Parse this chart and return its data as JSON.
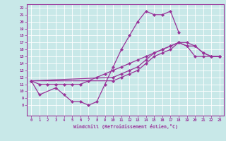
{
  "xlabel": "Windchill (Refroidissement éolien,°C)",
  "color": "#993399",
  "bg_color": "#c8e8e8",
  "grid_color": "#aaaaaa",
  "ylim": [
    6.5,
    22.5
  ],
  "xlim": [
    -0.5,
    23.5
  ],
  "yticks": [
    8,
    9,
    10,
    11,
    12,
    13,
    14,
    15,
    16,
    17,
    18,
    19,
    20,
    21,
    22
  ],
  "xticks": [
    0,
    1,
    2,
    3,
    4,
    5,
    6,
    7,
    8,
    9,
    10,
    11,
    12,
    13,
    14,
    15,
    16,
    17,
    18,
    19,
    20,
    21,
    22,
    23
  ],
  "line1_x": [
    0,
    1,
    3,
    4,
    5,
    6,
    7,
    8,
    9,
    10,
    11,
    12,
    13,
    14,
    15,
    16,
    17,
    18
  ],
  "line1_y": [
    11.5,
    9.5,
    10.5,
    9.5,
    8.5,
    8.5,
    8.0,
    8.5,
    11.0,
    13.5,
    16.0,
    18.0,
    20.0,
    21.5,
    21.0,
    21.0,
    21.5,
    18.5
  ],
  "line2_x": [
    0,
    10,
    11,
    12,
    13,
    14,
    15,
    16,
    17,
    18,
    19,
    20,
    21,
    22,
    23
  ],
  "line2_y": [
    11.5,
    12.0,
    12.5,
    13.0,
    13.5,
    14.5,
    15.5,
    16.0,
    16.5,
    17.0,
    17.0,
    16.5,
    15.5,
    15.0,
    15.0
  ],
  "line3_x": [
    0,
    1,
    2,
    3,
    4,
    5,
    6,
    7,
    8,
    9,
    10,
    11,
    12,
    13,
    14,
    15,
    16,
    17,
    18,
    19,
    20,
    21,
    22,
    23
  ],
  "line3_y": [
    11.5,
    11.0,
    11.0,
    11.0,
    11.0,
    11.0,
    11.0,
    11.5,
    12.0,
    12.5,
    13.0,
    13.5,
    14.0,
    14.5,
    15.0,
    15.5,
    16.0,
    16.5,
    17.0,
    16.5,
    15.0,
    15.0,
    15.0,
    15.0
  ],
  "line4_x": [
    0,
    10,
    11,
    12,
    13,
    14,
    15,
    16,
    17,
    18,
    19,
    20,
    21,
    22,
    23
  ],
  "line4_y": [
    11.5,
    11.5,
    12.0,
    12.5,
    13.0,
    14.0,
    15.0,
    15.5,
    16.0,
    17.0,
    16.5,
    16.5,
    15.5,
    15.0,
    15.0
  ]
}
